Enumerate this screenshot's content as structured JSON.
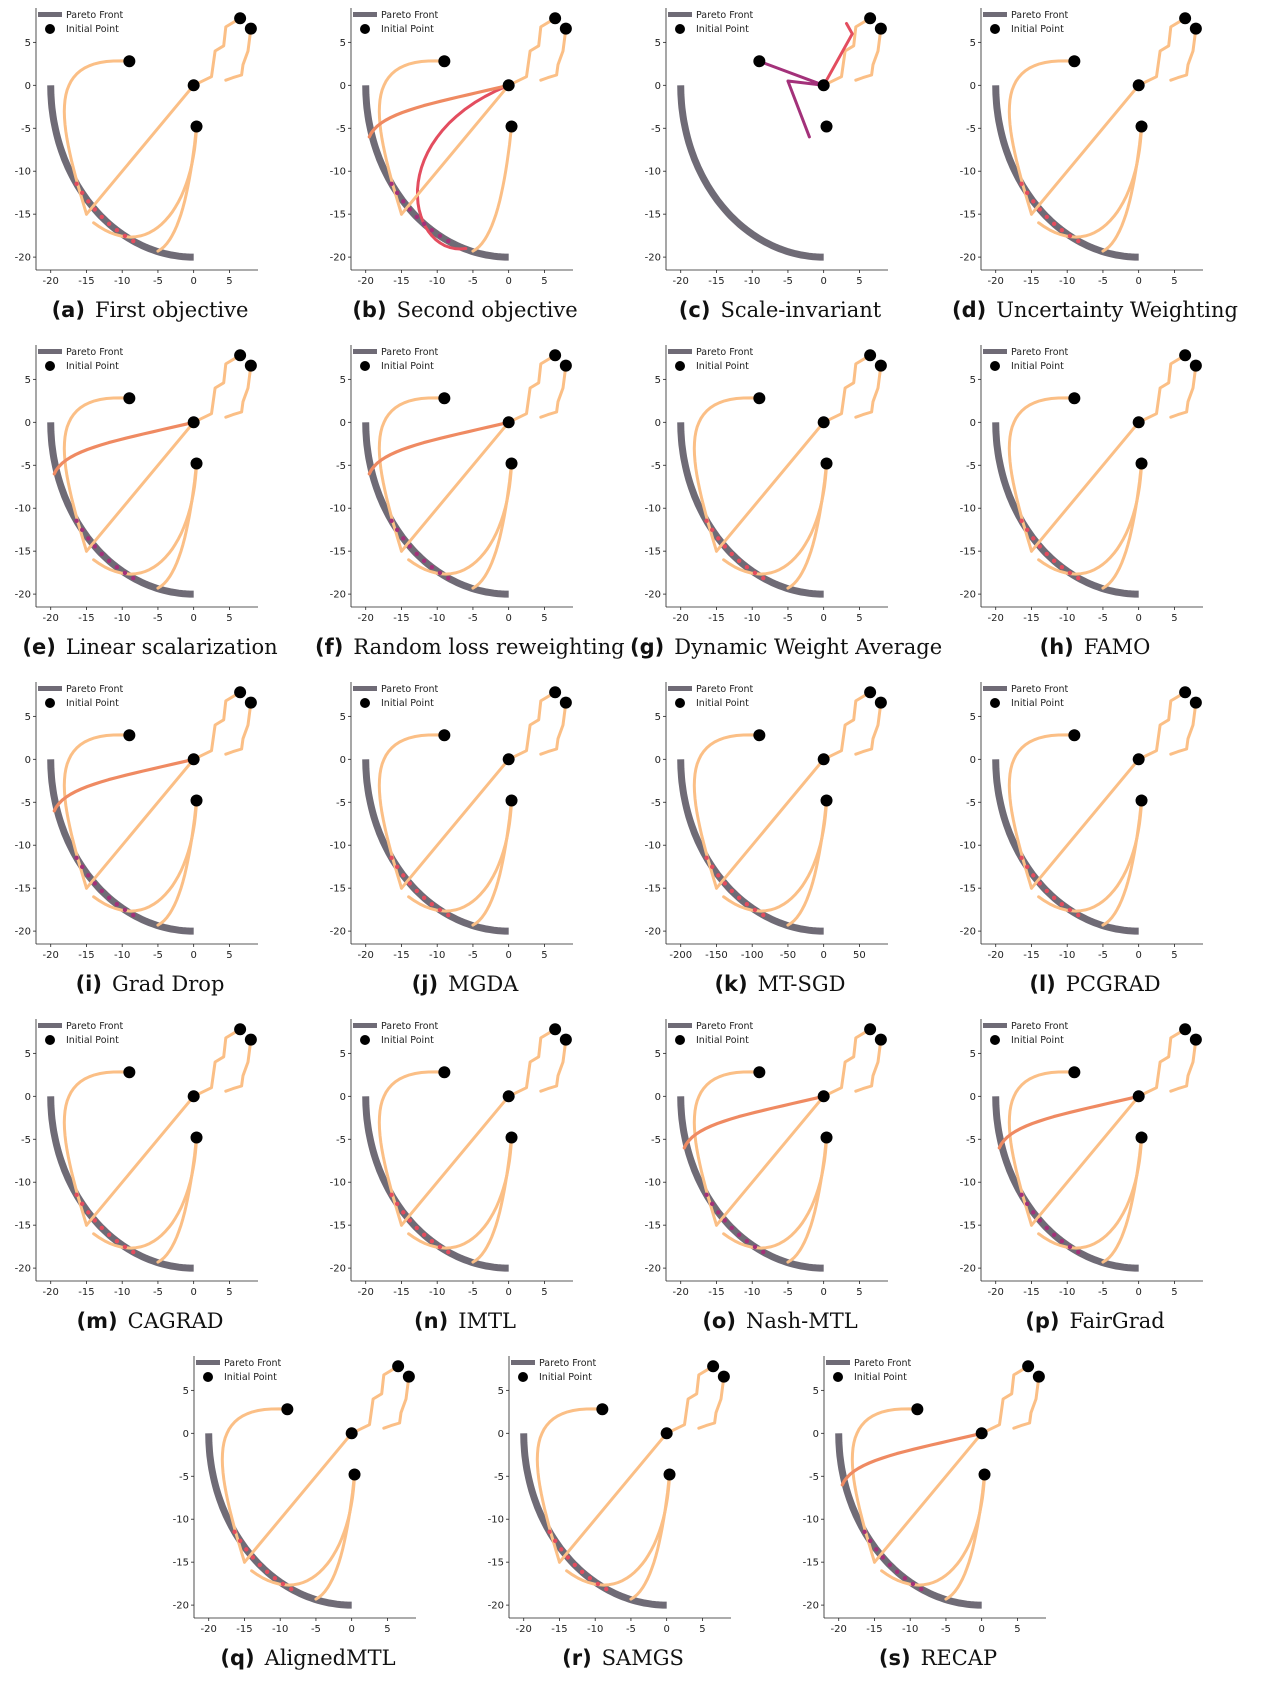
{
  "legend": {
    "front": "Pareto Front",
    "init": "Initial Point"
  },
  "colors": {
    "front": "#6f6b76",
    "traj": "#fbbf86",
    "traj_mid": "#ef8a62",
    "traj_hot": "#e34d5f",
    "traj_deep": "#a3317a",
    "point": "#000000"
  },
  "axes": {
    "x_ticks": [
      "-20",
      "-15",
      "-10",
      "-5",
      "0",
      "5"
    ],
    "x_ticks_k": [
      "-200",
      "-150",
      "-100",
      "-50",
      "0",
      "50"
    ],
    "y_ticks": [
      "5",
      "0",
      "-5",
      "-10",
      "-15",
      "-20"
    ]
  },
  "chart_data": {
    "type": "line",
    "xlim": [
      -21.5,
      9
    ],
    "ylim": [
      -21.5,
      9
    ],
    "pareto_front": "quarter arc from (-20, 0) to (0, -20)",
    "initial_points": [
      [
        -9,
        2.8
      ],
      [
        0,
        0
      ],
      [
        6.5,
        7.8
      ],
      [
        8,
        6.6
      ],
      [
        0.4,
        -4.8
      ]
    ],
    "panels": [
      {
        "letter": "(a)",
        "title": "First objective"
      },
      {
        "letter": "(b)",
        "title": "Second objective"
      },
      {
        "letter": "(c)",
        "title": "Scale-invariant"
      },
      {
        "letter": "(d)",
        "title": "Uncertainty Weighting"
      },
      {
        "letter": "(e)",
        "title": "Linear scalarization"
      },
      {
        "letter": "(f)",
        "title": "Random loss reweighting"
      },
      {
        "letter": "(g)",
        "title": "Dynamic Weight Average"
      },
      {
        "letter": "(h)",
        "title": "FAMO"
      },
      {
        "letter": "(i)",
        "title": "Grad Drop"
      },
      {
        "letter": "(j)",
        "title": "MGDA"
      },
      {
        "letter": "(k)",
        "title": "MT-SGD"
      },
      {
        "letter": "(l)",
        "title": "PCGRAD"
      },
      {
        "letter": "(m)",
        "title": "CAGRAD"
      },
      {
        "letter": "(n)",
        "title": "IMTL"
      },
      {
        "letter": "(o)",
        "title": "Nash-MTL"
      },
      {
        "letter": "(p)",
        "title": "FairGrad"
      },
      {
        "letter": "(q)",
        "title": "AlignedMTL"
      },
      {
        "letter": "(r)",
        "title": "SAMGS"
      },
      {
        "letter": "(s)",
        "title": "RECAP"
      }
    ]
  }
}
